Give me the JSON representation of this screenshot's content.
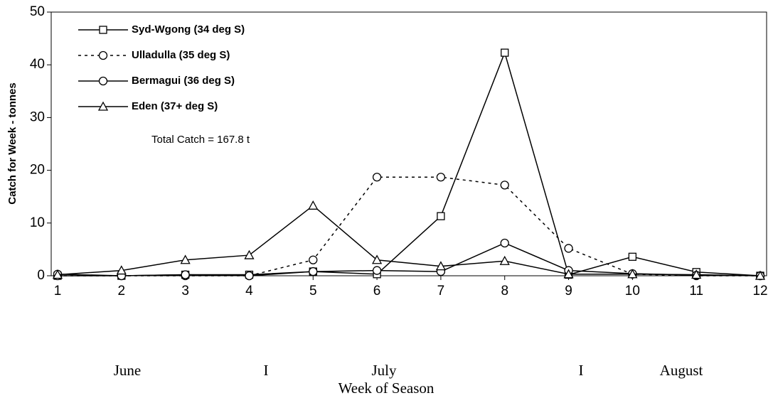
{
  "chart_data": {
    "type": "line",
    "ylabel": "Catch for Week - tonnes",
    "xlabel": "Week of Season",
    "annotation": "Total Catch = 167.8 t",
    "month_labels": [
      "June",
      "I",
      "July",
      "I",
      "August"
    ],
    "x": [
      1,
      2,
      3,
      4,
      5,
      6,
      7,
      8,
      9,
      10,
      11,
      12
    ],
    "xlim": [
      0.9,
      12.1
    ],
    "xticks": [
      1,
      2,
      3,
      4,
      5,
      6,
      7,
      8,
      9,
      10,
      11,
      12
    ],
    "ylim": [
      0,
      50
    ],
    "yticks": [
      0,
      10,
      20,
      30,
      40,
      50
    ],
    "series": [
      {
        "name": "Syd-Wgong (34 deg S)",
        "color": "#000000",
        "style": "solid",
        "marker": "square",
        "values": [
          0,
          0,
          0.2,
          0.2,
          0.8,
          0.3,
          11.3,
          42.3,
          0.2,
          3.6,
          0.7,
          0
        ]
      },
      {
        "name": "Ulladulla (35 deg S)",
        "color": "#000000",
        "style": "dashed",
        "marker": "circle",
        "values": [
          0,
          0,
          0,
          0,
          3.0,
          18.7,
          18.7,
          17.2,
          5.2,
          0.3,
          0,
          0
        ]
      },
      {
        "name": "Bermagui (36 deg S)",
        "color": "#000000",
        "style": "solid",
        "marker": "circle",
        "values": [
          0.3,
          0,
          0.2,
          0,
          0.8,
          1.0,
          0.8,
          6.2,
          1.0,
          0.4,
          0.1,
          0
        ]
      },
      {
        "name": "Eden (37+ deg S)",
        "color": "#000000",
        "style": "solid",
        "marker": "triangle",
        "values": [
          0.2,
          1.0,
          3.0,
          3.9,
          13.3,
          3.0,
          1.8,
          2.8,
          0.3,
          0.3,
          0.2,
          0
        ]
      }
    ]
  }
}
